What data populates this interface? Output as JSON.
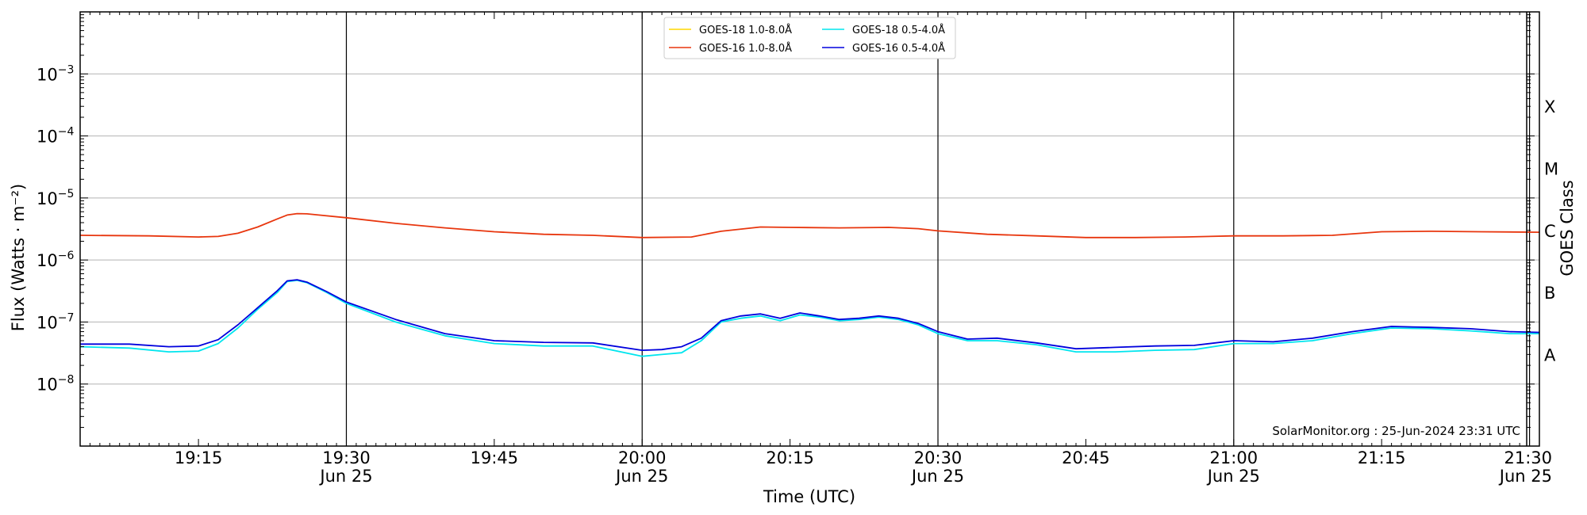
{
  "chart_data": {
    "type": "line",
    "xlabel": "Time (UTC)",
    "ylabel": "Flux (Watts · m⁻²)",
    "right_axis_label": "GOES Class",
    "watermark": "SolarMonitor.org : 25-Jun-2024 23:31 UTC",
    "y_scale": "log",
    "ylim": [
      1e-09,
      0.01
    ],
    "y_ticks": [
      {
        "exp": -8,
        "base": "10",
        "sup": "−8"
      },
      {
        "exp": -7,
        "base": "10",
        "sup": "−7"
      },
      {
        "exp": -6,
        "base": "10",
        "sup": "−6"
      },
      {
        "exp": -5,
        "base": "10",
        "sup": "−5"
      },
      {
        "exp": -4,
        "base": "10",
        "sup": "−4"
      },
      {
        "exp": -3,
        "base": "10",
        "sup": "−3"
      }
    ],
    "x_range": [
      "19:03",
      "21:31"
    ],
    "x_ticks": [
      {
        "time": "19:15",
        "label": "19:15",
        "sub": ""
      },
      {
        "time": "19:30",
        "label": "19:30",
        "sub": "Jun 25"
      },
      {
        "time": "19:45",
        "label": "19:45",
        "sub": ""
      },
      {
        "time": "20:00",
        "label": "20:00",
        "sub": "Jun 25"
      },
      {
        "time": "20:15",
        "label": "20:15",
        "sub": ""
      },
      {
        "time": "20:30",
        "label": "20:30",
        "sub": "Jun 25"
      },
      {
        "time": "20:45",
        "label": "20:45",
        "sub": ""
      },
      {
        "time": "21:00",
        "label": "21:00",
        "sub": "Jun 25"
      },
      {
        "time": "21:15",
        "label": "21:15",
        "sub": ""
      },
      {
        "time": "21:30",
        "label": "21:30",
        "sub": "Jun 25"
      }
    ],
    "goes_classes": [
      {
        "label": "A",
        "flux": "3e-8"
      },
      {
        "label": "B",
        "flux": "3e-7"
      },
      {
        "label": "C",
        "flux": "3e-6"
      },
      {
        "label": "M",
        "flux": "3e-5"
      },
      {
        "label": "X",
        "flux": "3e-4"
      }
    ],
    "horizontal_grid": true,
    "vertical_lines": [
      "19:30",
      "20:00",
      "20:30",
      "21:00",
      "21:30"
    ],
    "legend": {
      "location": "top-center",
      "columns": [
        [
          "GOES-18 1.0-8.0Å",
          "GOES-16 1.0-8.0Å"
        ],
        [
          "GOES-18 0.5-4.0Å",
          "GOES-16 0.5-4.0Å"
        ]
      ]
    },
    "series": [
      {
        "name": "GOES-18 1.0-8.0Å",
        "color": "#ffd700",
        "x": [],
        "y": []
      },
      {
        "name": "GOES-16 1.0-8.0Å",
        "color": "#e8360e",
        "x": [
          "19:03",
          "19:10",
          "19:15",
          "19:17",
          "19:19",
          "19:21",
          "19:23",
          "19:24",
          "19:25",
          "19:26",
          "19:27",
          "19:30",
          "19:35",
          "19:40",
          "19:45",
          "19:50",
          "19:55",
          "20:00",
          "20:05",
          "20:08",
          "20:12",
          "20:15",
          "20:20",
          "20:25",
          "20:28",
          "20:30",
          "20:35",
          "20:40",
          "20:45",
          "20:50",
          "20:55",
          "21:00",
          "21:05",
          "21:10",
          "21:15",
          "21:20",
          "21:25",
          "21:31"
        ],
        "y": [
          2.5e-06,
          2.45e-06,
          2.35e-06,
          2.4e-06,
          2.7e-06,
          3.4e-06,
          4.6e-06,
          5.3e-06,
          5.6e-06,
          5.55e-06,
          5.35e-06,
          4.8e-06,
          3.9e-06,
          3.3e-06,
          2.85e-06,
          2.6e-06,
          2.5e-06,
          2.3e-06,
          2.35e-06,
          2.9e-06,
          3.4e-06,
          3.35e-06,
          3.3e-06,
          3.35e-06,
          3.2e-06,
          2.95e-06,
          2.6e-06,
          2.45e-06,
          2.3e-06,
          2.3e-06,
          2.35e-06,
          2.45e-06,
          2.45e-06,
          2.5e-06,
          2.85e-06,
          2.9e-06,
          2.85e-06,
          2.8e-06
        ]
      },
      {
        "name": "GOES-18 0.5-4.0Å",
        "color": "#00e5ee",
        "x": [
          "19:03",
          "19:08",
          "19:12",
          "19:15",
          "19:17",
          "19:19",
          "19:21",
          "19:23",
          "19:24",
          "19:25",
          "19:26",
          "19:28",
          "19:30",
          "19:35",
          "19:40",
          "19:45",
          "19:50",
          "19:55",
          "20:00",
          "20:02",
          "20:04",
          "20:06",
          "20:08",
          "20:10",
          "20:12",
          "20:14",
          "20:16",
          "20:18",
          "20:20",
          "20:22",
          "20:24",
          "20:26",
          "20:28",
          "20:30",
          "20:33",
          "20:36",
          "20:40",
          "20:44",
          "20:48",
          "20:52",
          "20:56",
          "21:00",
          "21:04",
          "21:08",
          "21:12",
          "21:16",
          "21:20",
          "21:24",
          "21:28",
          "21:31"
        ],
        "y": [
          4e-08,
          3.8e-08,
          3.3e-08,
          3.4e-08,
          4.5e-08,
          8e-08,
          1.6e-07,
          3e-07,
          4.5e-07,
          4.7e-07,
          4.3e-07,
          3e-07,
          2e-07,
          1e-07,
          6e-08,
          4.5e-08,
          4.1e-08,
          4.1e-08,
          2.8e-08,
          3e-08,
          3.2e-08,
          5e-08,
          1e-07,
          1.15e-07,
          1.25e-07,
          1.05e-07,
          1.3e-07,
          1.2e-07,
          1.05e-07,
          1.1e-07,
          1.2e-07,
          1.1e-07,
          9e-08,
          6.5e-08,
          5e-08,
          5e-08,
          4.3e-08,
          3.3e-08,
          3.3e-08,
          3.5e-08,
          3.6e-08,
          4.5e-08,
          4.5e-08,
          5e-08,
          6.5e-08,
          8e-08,
          7.8e-08,
          7.2e-08,
          6.5e-08,
          6.5e-08
        ]
      },
      {
        "name": "GOES-16 0.5-4.0Å",
        "color": "#0000dd",
        "x": [
          "19:03",
          "19:08",
          "19:12",
          "19:15",
          "19:17",
          "19:19",
          "19:21",
          "19:23",
          "19:24",
          "19:25",
          "19:26",
          "19:28",
          "19:30",
          "19:35",
          "19:40",
          "19:45",
          "19:50",
          "19:55",
          "20:00",
          "20:02",
          "20:04",
          "20:06",
          "20:08",
          "20:10",
          "20:12",
          "20:14",
          "20:16",
          "20:18",
          "20:20",
          "20:22",
          "20:24",
          "20:26",
          "20:28",
          "20:30",
          "20:33",
          "20:36",
          "20:40",
          "20:44",
          "20:48",
          "20:52",
          "20:56",
          "21:00",
          "21:04",
          "21:08",
          "21:12",
          "21:16",
          "21:20",
          "21:24",
          "21:28",
          "21:31"
        ],
        "y": [
          4.4e-08,
          4.4e-08,
          4e-08,
          4.1e-08,
          5.2e-08,
          9e-08,
          1.7e-07,
          3.2e-07,
          4.6e-07,
          4.8e-07,
          4.4e-07,
          3.1e-07,
          2.1e-07,
          1.1e-07,
          6.5e-08,
          5e-08,
          4.7e-08,
          4.6e-08,
          3.5e-08,
          3.6e-08,
          4e-08,
          5.5e-08,
          1.05e-07,
          1.25e-07,
          1.35e-07,
          1.15e-07,
          1.4e-07,
          1.25e-07,
          1.1e-07,
          1.15e-07,
          1.25e-07,
          1.15e-07,
          9.5e-08,
          7e-08,
          5.3e-08,
          5.5e-08,
          4.6e-08,
          3.7e-08,
          3.9e-08,
          4.1e-08,
          4.2e-08,
          5e-08,
          4.8e-08,
          5.5e-08,
          7e-08,
          8.5e-08,
          8.2e-08,
          7.8e-08,
          7e-08,
          6.8e-08
        ]
      }
    ]
  }
}
